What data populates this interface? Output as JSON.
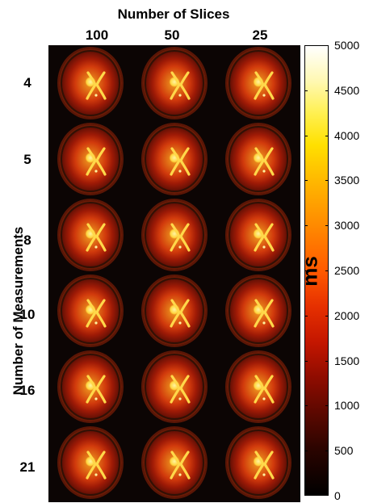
{
  "title": "Number of Slices",
  "columns": [
    "100",
    "50",
    "25"
  ],
  "rows": [
    "4",
    "5",
    "8",
    "10",
    "16",
    "21"
  ],
  "y_axis_label": "Number of Measurements",
  "colorbar": {
    "unit": "ms",
    "ticks": [
      "5000",
      "4500",
      "4000",
      "3500",
      "3000",
      "2500",
      "2000",
      "1500",
      "1000",
      "500",
      "0"
    ],
    "range": [
      0,
      5000
    ],
    "colormap": "hot"
  }
}
